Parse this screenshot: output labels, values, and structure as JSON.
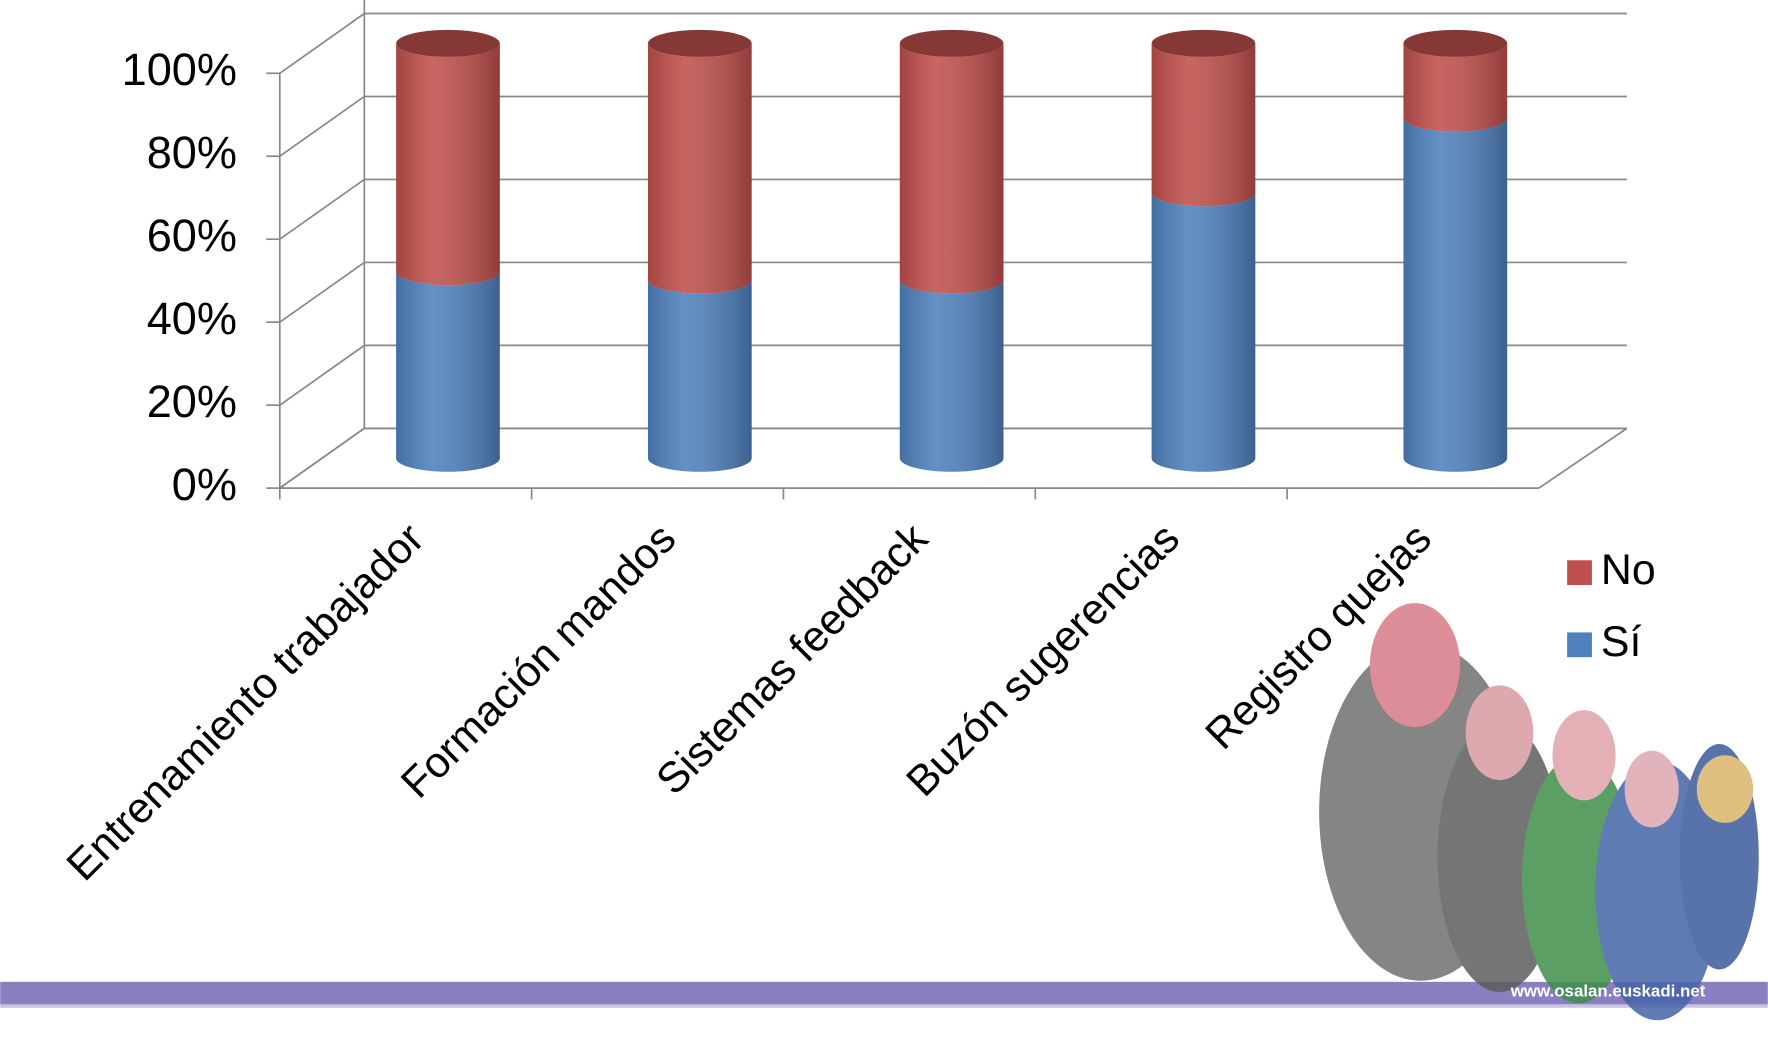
{
  "chart_data": {
    "type": "bar",
    "stacked": true,
    "categories": [
      "Entrenamiento trabajador",
      "Formación mandos",
      "Sistemas feedback",
      "Buzón sugerencias",
      "Registro quejas"
    ],
    "series": [
      {
        "name": "Sí",
        "color": "#4f81bd",
        "values": [
          45,
          43,
          43,
          64,
          82
        ]
      },
      {
        "name": "No",
        "color": "#c0504d",
        "values": [
          55,
          57,
          57,
          36,
          18
        ]
      }
    ],
    "ylim": [
      0,
      100
    ],
    "yticks": [
      {
        "value": 0,
        "label": "0%"
      },
      {
        "value": 20,
        "label": "20%"
      },
      {
        "value": 40,
        "label": "40%"
      },
      {
        "value": 60,
        "label": "60%"
      },
      {
        "value": 80,
        "label": "80%"
      },
      {
        "value": 100,
        "label": "100%"
      }
    ],
    "grid": true,
    "legend": "right"
  },
  "footer_url": "www.osalan.euskadi.net"
}
